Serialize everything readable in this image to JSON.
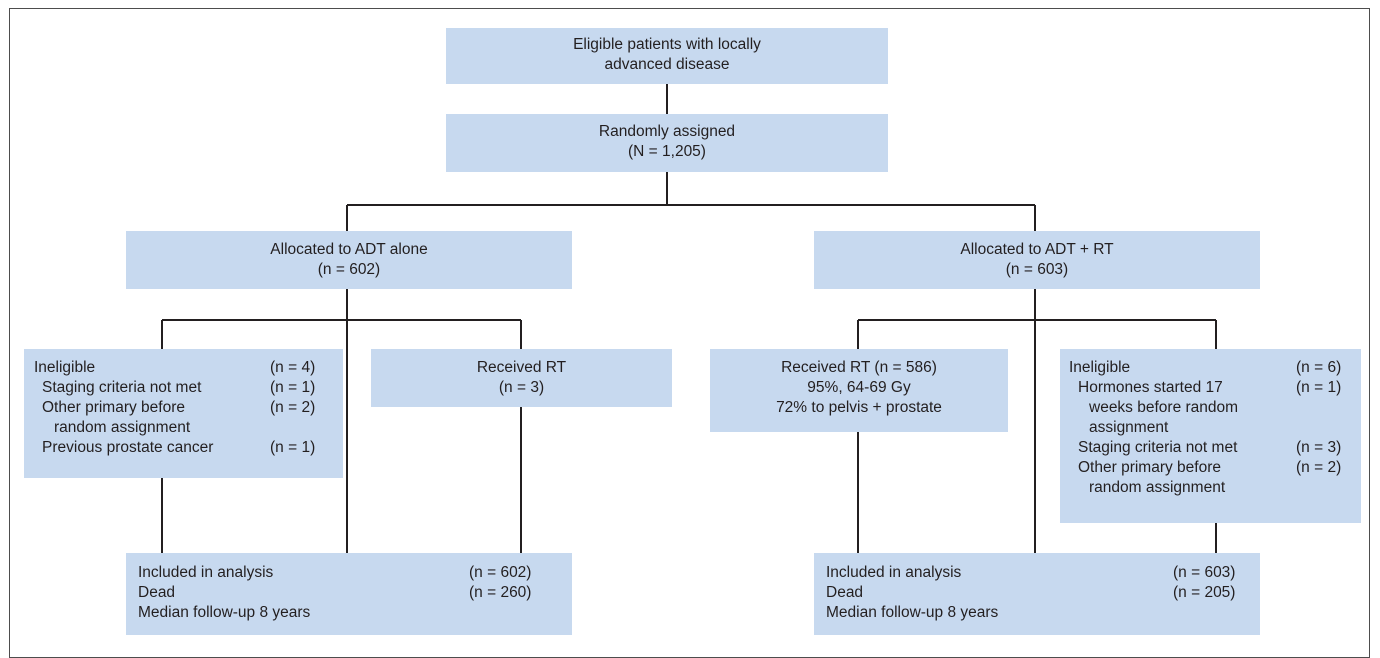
{
  "nodes": {
    "eligible": {
      "line1": "Eligible patients with locally",
      "line2": "advanced disease"
    },
    "randomized": {
      "line1": "Randomly assigned",
      "line2": "(N = 1,205)"
    },
    "adt_alone": {
      "line1": "Allocated to ADT alone",
      "line2": "(n = 602)"
    },
    "adt_rt": {
      "line1": "Allocated to ADT + RT",
      "line2": "(n = 603)"
    },
    "ineligible_left": {
      "header": {
        "label": "Ineligible",
        "n": "(n = 4)"
      },
      "items": [
        {
          "label": "Staging criteria not met",
          "n": "(n = 1)"
        },
        {
          "label": "Other primary before",
          "label2": "random assignment",
          "n": "(n = 2)"
        },
        {
          "label": "Previous prostate cancer",
          "n": "(n = 1)"
        }
      ]
    },
    "received_rt_left": {
      "line1": "Received RT",
      "line2": "(n = 3)"
    },
    "received_rt_right": {
      "line1": "Received RT (n = 586)",
      "line2": "95%, 64-69 Gy",
      "line3": "72% to pelvis + prostate"
    },
    "ineligible_right": {
      "header": {
        "label": "Ineligible",
        "n": "(n = 6)"
      },
      "items": [
        {
          "label": "Hormones started 17",
          "label2": "weeks before random",
          "label3": "assignment",
          "n": "(n = 1)"
        },
        {
          "label": "Staging criteria not met",
          "n": "(n = 3)"
        },
        {
          "label": "Other primary before",
          "label2": "random assignment",
          "n": "(n = 2)"
        }
      ]
    },
    "analysis_left": {
      "included": {
        "label": "Included in analysis",
        "n": "(n = 602)"
      },
      "dead": {
        "label": "Dead",
        "n": "(n = 260)"
      },
      "followup": "Median follow-up 8 years"
    },
    "analysis_right": {
      "included": {
        "label": "Included in analysis",
        "n": "(n = 603)"
      },
      "dead": {
        "label": "Dead",
        "n": "(n = 205)"
      },
      "followup": "Median follow-up 8 years"
    }
  },
  "colors": {
    "box_fill": "#c7d9ef",
    "line": "#231f20",
    "frame": "#4d4d4d"
  }
}
